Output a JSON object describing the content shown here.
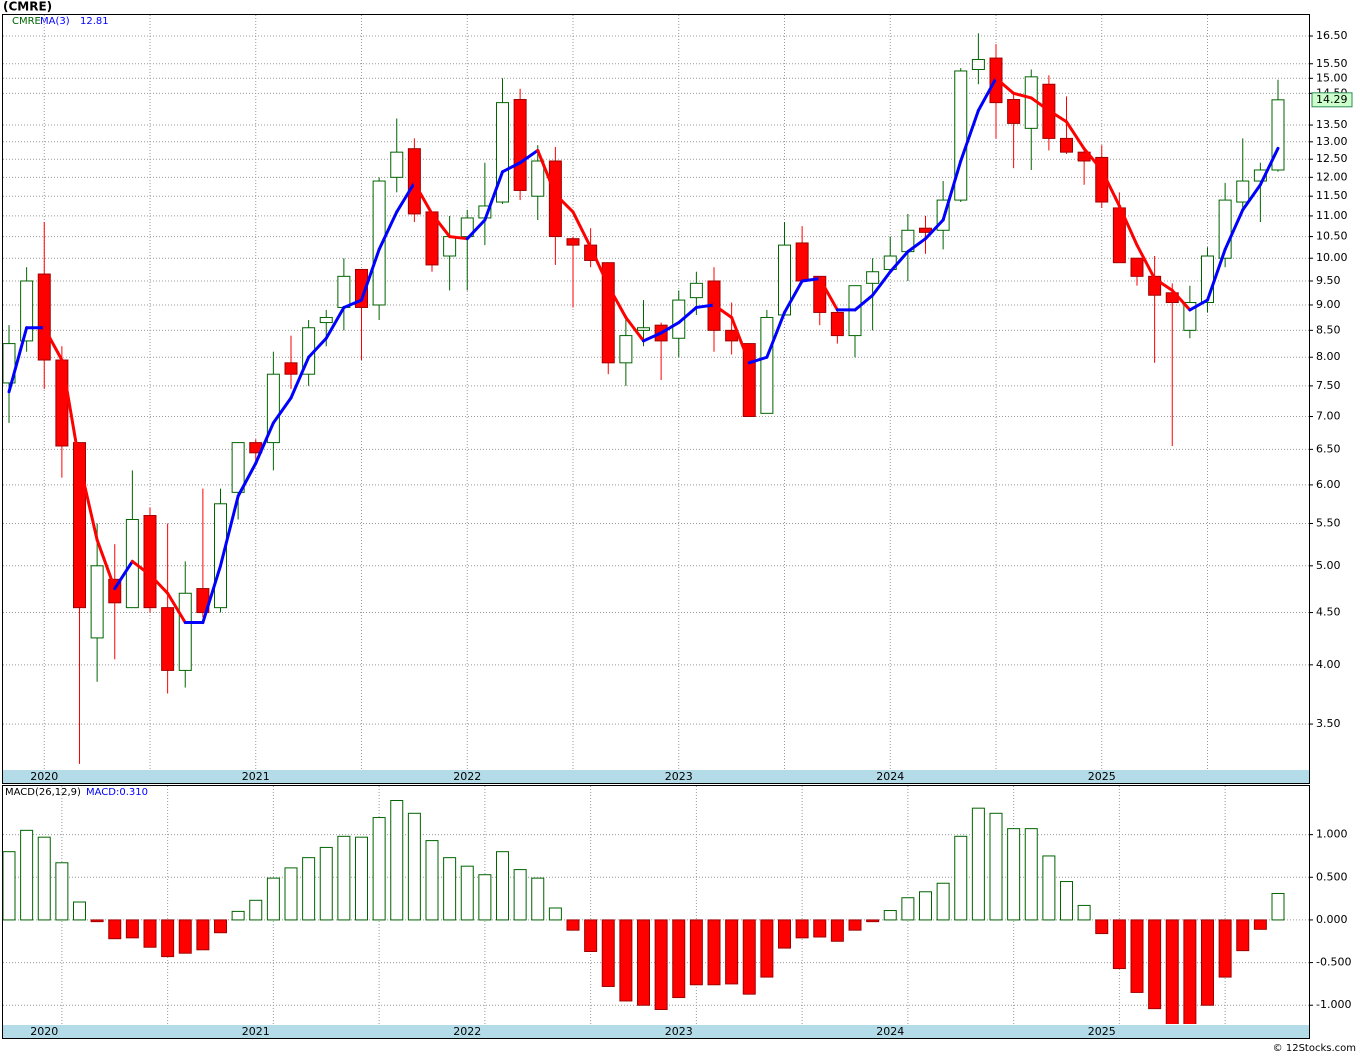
{
  "header": {
    "title": "(CMRE)",
    "legend_symbol": "CMRE",
    "legend_ma": "MA(3)"
  },
  "footer": "© 12Stocks.com",
  "chart_data": [
    {
      "type": "candlestick",
      "categories": [
        null,
        null,
        "2020",
        null,
        null,
        null,
        null,
        null,
        null,
        null,
        null,
        null,
        null,
        null,
        "2021",
        null,
        null,
        null,
        null,
        null,
        null,
        null,
        null,
        null,
        null,
        null,
        "2022",
        null,
        null,
        null,
        null,
        null,
        null,
        null,
        null,
        null,
        null,
        null,
        "2023",
        null,
        null,
        null,
        null,
        null,
        null,
        null,
        null,
        null,
        null,
        null,
        "2024",
        null,
        null,
        null,
        null,
        null,
        null,
        null,
        null,
        null,
        null,
        null,
        "2025",
        null,
        null,
        null,
        null,
        null,
        null,
        null,
        null,
        null,
        null
      ],
      "open": [
        7.55,
        8.3,
        9.65,
        7.95,
        6.6,
        4.25,
        4.85,
        4.55,
        5.6,
        4.55,
        3.95,
        4.75,
        4.55,
        5.9,
        6.6,
        6.6,
        7.9,
        7.7,
        8.65,
        8.95,
        9.75,
        9.0,
        12.0,
        12.8,
        11.1,
        10.05,
        10.5,
        10.95,
        11.35,
        14.3,
        11.5,
        12.45,
        10.45,
        10.3,
        9.9,
        7.9,
        8.5,
        8.6,
        8.35,
        9.15,
        9.5,
        8.5,
        8.25,
        7.05,
        8.8,
        10.35,
        9.6,
        8.85,
        8.4,
        9.45,
        9.75,
        10.15,
        10.7,
        10.65,
        11.4,
        15.3,
        15.7,
        14.3,
        13.4,
        14.8,
        13.1,
        12.7,
        12.55,
        11.2,
        10.0,
        9.6,
        9.25,
        8.5,
        9.05,
        10.0,
        11.35,
        11.9,
        12.2
      ],
      "high": [
        8.6,
        9.8,
        10.85,
        8.2,
        6.6,
        5.5,
        5.25,
        6.2,
        5.7,
        5.5,
        5.05,
        5.95,
        5.95,
        6.6,
        6.65,
        8.1,
        8.4,
        8.7,
        8.9,
        10.0,
        9.75,
        12.0,
        13.7,
        13.1,
        11.1,
        11.0,
        11.15,
        12.4,
        15.0,
        14.65,
        12.9,
        12.85,
        10.5,
        10.7,
        9.9,
        8.8,
        9.1,
        8.65,
        9.3,
        9.7,
        9.8,
        9.05,
        8.25,
        8.9,
        10.85,
        10.75,
        9.6,
        8.9,
        9.4,
        10.0,
        10.5,
        11.05,
        11.0,
        11.9,
        15.35,
        16.6,
        16.2,
        14.5,
        15.3,
        15.1,
        14.4,
        12.8,
        12.9,
        11.6,
        10.0,
        10.05,
        9.45,
        9.4,
        10.25,
        11.85,
        13.1,
        12.4,
        14.95
      ],
      "low": [
        6.9,
        8.1,
        7.45,
        6.1,
        3.2,
        3.85,
        4.05,
        4.55,
        4.5,
        3.75,
        3.8,
        4.45,
        4.5,
        5.55,
        6.3,
        6.2,
        7.45,
        7.5,
        8.2,
        8.5,
        7.95,
        8.7,
        11.6,
        10.85,
        9.7,
        9.3,
        9.3,
        10.3,
        11.3,
        11.4,
        10.9,
        9.85,
        8.95,
        9.8,
        7.7,
        7.5,
        8.2,
        7.6,
        8.0,
        8.8,
        8.1,
        8.05,
        7.0,
        7.05,
        8.8,
        9.5,
        8.6,
        8.25,
        8.0,
        8.5,
        9.75,
        9.5,
        10.1,
        10.2,
        11.35,
        14.8,
        13.1,
        12.25,
        12.2,
        12.75,
        12.65,
        11.8,
        11.2,
        9.9,
        9.4,
        7.9,
        6.55,
        8.35,
        8.85,
        9.8,
        11.2,
        10.85,
        12.15
      ],
      "close": [
        8.25,
        9.5,
        7.95,
        6.55,
        4.55,
        5.0,
        4.6,
        5.55,
        4.55,
        3.95,
        4.7,
        4.5,
        5.75,
        6.6,
        6.45,
        7.7,
        7.7,
        8.55,
        8.75,
        9.6,
        8.95,
        11.9,
        12.7,
        11.05,
        9.85,
        10.5,
        10.95,
        11.25,
        14.2,
        11.65,
        12.45,
        10.5,
        10.3,
        9.95,
        7.9,
        8.4,
        8.55,
        8.3,
        9.1,
        9.45,
        8.5,
        8.3,
        7.0,
        8.75,
        10.3,
        9.5,
        8.85,
        8.4,
        9.4,
        9.7,
        10.05,
        10.65,
        10.6,
        11.4,
        15.25,
        15.65,
        14.2,
        13.55,
        15.05,
        13.1,
        12.7,
        12.45,
        11.35,
        9.9,
        9.6,
        9.2,
        9.05,
        9.05,
        10.05,
        11.4,
        11.9,
        12.2,
        14.29
      ],
      "ma": [
        7.4,
        8.55,
        8.55,
        7.95,
        6.3,
        5.3,
        4.75,
        5.05,
        4.9,
        4.7,
        4.4,
        4.4,
        5.0,
        5.85,
        6.3,
        6.9,
        7.3,
        8.0,
        8.35,
        8.95,
        9.1,
        10.2,
        11.1,
        11.85,
        11.05,
        10.5,
        10.45,
        10.9,
        12.15,
        12.4,
        12.75,
        11.55,
        11.1,
        10.25,
        9.4,
        8.75,
        8.3,
        8.45,
        8.65,
        8.95,
        9.0,
        8.75,
        7.9,
        8.0,
        8.85,
        9.5,
        9.55,
        8.9,
        8.9,
        9.2,
        9.7,
        10.15,
        10.45,
        10.9,
        12.45,
        13.95,
        15.0,
        14.5,
        14.35,
        13.95,
        13.6,
        12.8,
        12.2,
        11.25,
        10.3,
        9.55,
        9.3,
        8.9,
        9.1,
        10.2,
        11.15,
        11.8,
        12.81
      ],
      "up_color": "#006400",
      "down_color": "#ff0000",
      "ma_up_color": "#0000ff",
      "ma_down_color": "#ff0000",
      "log_scale": true,
      "grid": true,
      "ylim": [
        3.163,
        17.3
      ],
      "yticks": [
        {
          "value": 3.5,
          "label": "3.50"
        },
        {
          "value": 4,
          "label": "4.00"
        },
        {
          "value": 4.5,
          "label": "4.50"
        },
        {
          "value": 5,
          "label": "5.00"
        },
        {
          "value": 5.5,
          "label": "5.50"
        },
        {
          "value": 6,
          "label": "6.00"
        },
        {
          "value": 6.5,
          "label": "6.50"
        },
        {
          "value": 7,
          "label": "7.00"
        },
        {
          "value": 7.5,
          "label": "7.50"
        },
        {
          "value": 8,
          "label": "8.00"
        },
        {
          "value": 8.5,
          "label": "8.50"
        },
        {
          "value": 9,
          "label": "9.00"
        },
        {
          "value": 9.5,
          "label": "9.50"
        },
        {
          "value": 10,
          "label": "10.00"
        },
        {
          "value": 10.5,
          "label": "10.50"
        },
        {
          "value": 11,
          "label": "11.00"
        },
        {
          "value": 11.5,
          "label": "11.50"
        },
        {
          "value": 12,
          "label": "12.00"
        },
        {
          "value": 12.5,
          "label": "12.50"
        },
        {
          "value": 13,
          "label": "13.00"
        },
        {
          "value": 13.5,
          "label": "13.50"
        },
        {
          "value": 14.5,
          "label": "14.50"
        },
        {
          "value": 15,
          "label": "15.00"
        },
        {
          "value": 15.5,
          "label": "15.50"
        },
        {
          "value": 16.5,
          "label": "16.50"
        }
      ]
    },
    {
      "type": "bar",
      "title": "MACD(26,12,9)",
      "legend": "MACD:0.310",
      "categories": [
        null,
        null,
        "2020",
        null,
        null,
        null,
        null,
        null,
        null,
        null,
        null,
        null,
        null,
        null,
        "2021",
        null,
        null,
        null,
        null,
        null,
        null,
        null,
        null,
        null,
        null,
        null,
        "2022",
        null,
        null,
        null,
        null,
        null,
        null,
        null,
        null,
        null,
        null,
        null,
        "2023",
        null,
        null,
        null,
        null,
        null,
        null,
        null,
        null,
        null,
        null,
        null,
        "2024",
        null,
        null,
        null,
        null,
        null,
        null,
        null,
        null,
        null,
        null,
        null,
        "2025",
        null,
        null,
        null,
        null,
        null,
        null,
        null,
        null,
        null,
        null
      ],
      "values": [
        0.8,
        1.05,
        0.97,
        0.67,
        0.21,
        -0.02,
        -0.22,
        -0.21,
        -0.32,
        -0.43,
        -0.39,
        -0.35,
        -0.15,
        0.1,
        0.23,
        0.49,
        0.61,
        0.73,
        0.85,
        0.98,
        0.97,
        1.2,
        1.4,
        1.25,
        0.93,
        0.73,
        0.63,
        0.53,
        0.8,
        0.59,
        0.49,
        0.14,
        -0.12,
        -0.37,
        -0.78,
        -0.95,
        -1.0,
        -1.05,
        -0.91,
        -0.76,
        -0.76,
        -0.75,
        -0.87,
        -0.67,
        -0.33,
        -0.21,
        -0.2,
        -0.25,
        -0.12,
        -0.02,
        0.11,
        0.26,
        0.33,
        0.43,
        0.98,
        1.31,
        1.25,
        1.07,
        1.07,
        0.75,
        0.45,
        0.17,
        -0.16,
        -0.57,
        -0.85,
        -1.04,
        -1.25,
        -1.25,
        -1.0,
        -0.67,
        -0.36,
        -0.11,
        0.31
      ],
      "up_color": "#006400",
      "down_color": "#ff0000",
      "grid": true,
      "ylim": [
        -1.22,
        1.57
      ],
      "yticks": [
        {
          "value": -1,
          "label": "-1.000"
        },
        {
          "value": -0.5,
          "label": "-0.500"
        },
        {
          "value": 0,
          "label": "0.000"
        },
        {
          "value": 0.5,
          "label": "0.500"
        },
        {
          "value": 1,
          "label": "1.000"
        }
      ]
    }
  ]
}
